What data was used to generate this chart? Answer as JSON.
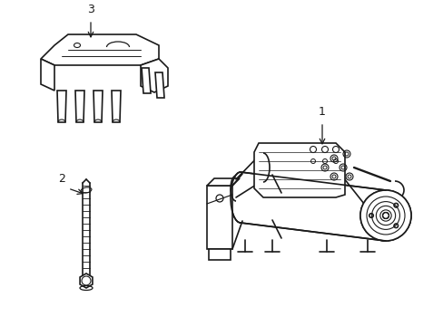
{
  "background_color": "#ffffff",
  "line_color": "#1a1a1a",
  "line_width": 1.2,
  "label_1": "1",
  "label_2": "2",
  "label_3": "3",
  "figsize": [
    4.89,
    3.6
  ],
  "dpi": 100
}
